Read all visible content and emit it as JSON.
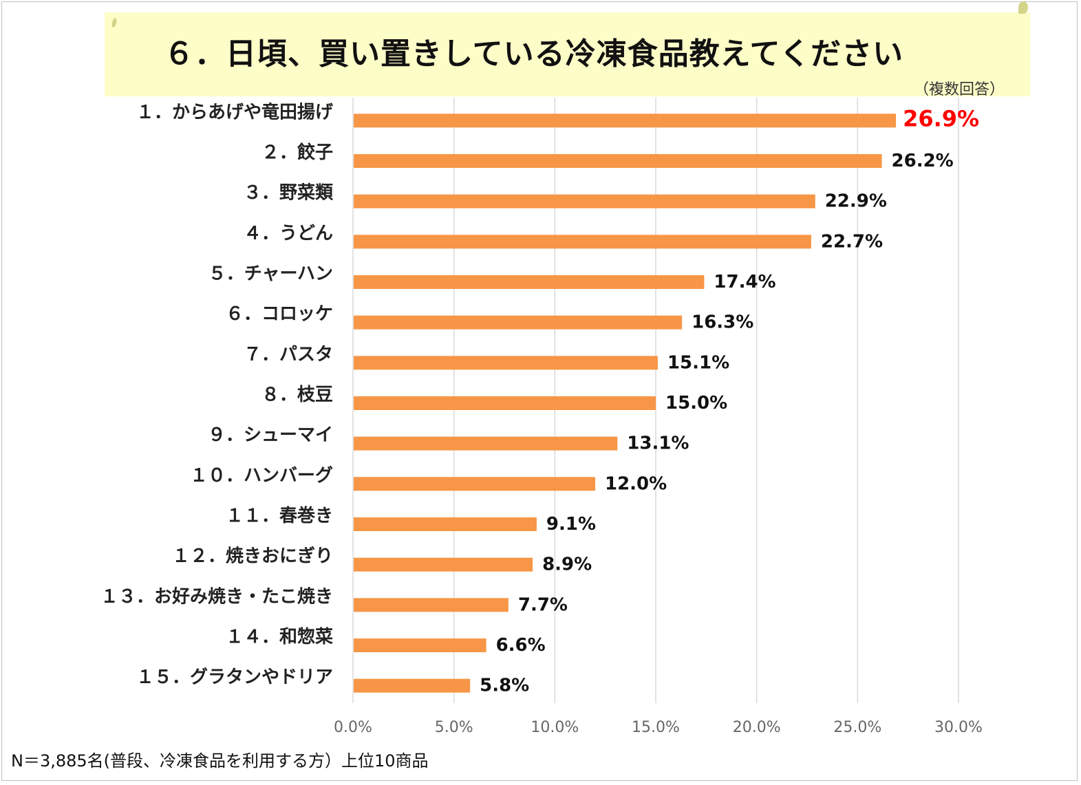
{
  "title": "６．日頃、買い置きしている冷凍食品教えてください",
  "subtitle": "（複数回答）",
  "footnote": "N＝3,885名(普段、冷凍食品を利用する方）上位10商品",
  "colors": {
    "bar": "#f79646",
    "highlight_label": "#ff0000",
    "grid": "#d9d9d9",
    "banner": "#fdfdc8"
  },
  "chart_data": {
    "type": "bar",
    "orientation": "horizontal",
    "categories": [
      "１．からあげや竜田揚げ",
      "２．餃子",
      "３．野菜類",
      "４．うどん",
      "５．チャーハン",
      "６．コロッケ",
      "７．パスタ",
      "８．枝豆",
      "９．シューマイ",
      "１０．ハンバーグ",
      "１１．春巻き",
      "１２．焼きおにぎり",
      "１３．お好み焼き・たこ焼き",
      "１４．和惣菜",
      "１５．グラタンやドリア"
    ],
    "values": [
      26.9,
      26.2,
      22.9,
      22.7,
      17.4,
      16.3,
      15.1,
      15.0,
      13.1,
      12.0,
      9.1,
      8.9,
      7.7,
      6.6,
      5.8
    ],
    "value_labels": [
      "26.9%",
      "26.2%",
      "22.9%",
      "22.7%",
      "17.4%",
      "16.3%",
      "15.1%",
      "15.0%",
      "13.1%",
      "12.0%",
      "9.1%",
      "8.9%",
      "7.7%",
      "6.6%",
      "5.8%"
    ],
    "xlim": [
      0,
      30
    ],
    "x_ticks": [
      0,
      5,
      10,
      15,
      20,
      25,
      30
    ],
    "x_tick_labels": [
      "0.0%",
      "5.0%",
      "10.0%",
      "15.0%",
      "20.0%",
      "25.0%",
      "30.0%"
    ],
    "grid": true,
    "highlight_index": 0
  }
}
